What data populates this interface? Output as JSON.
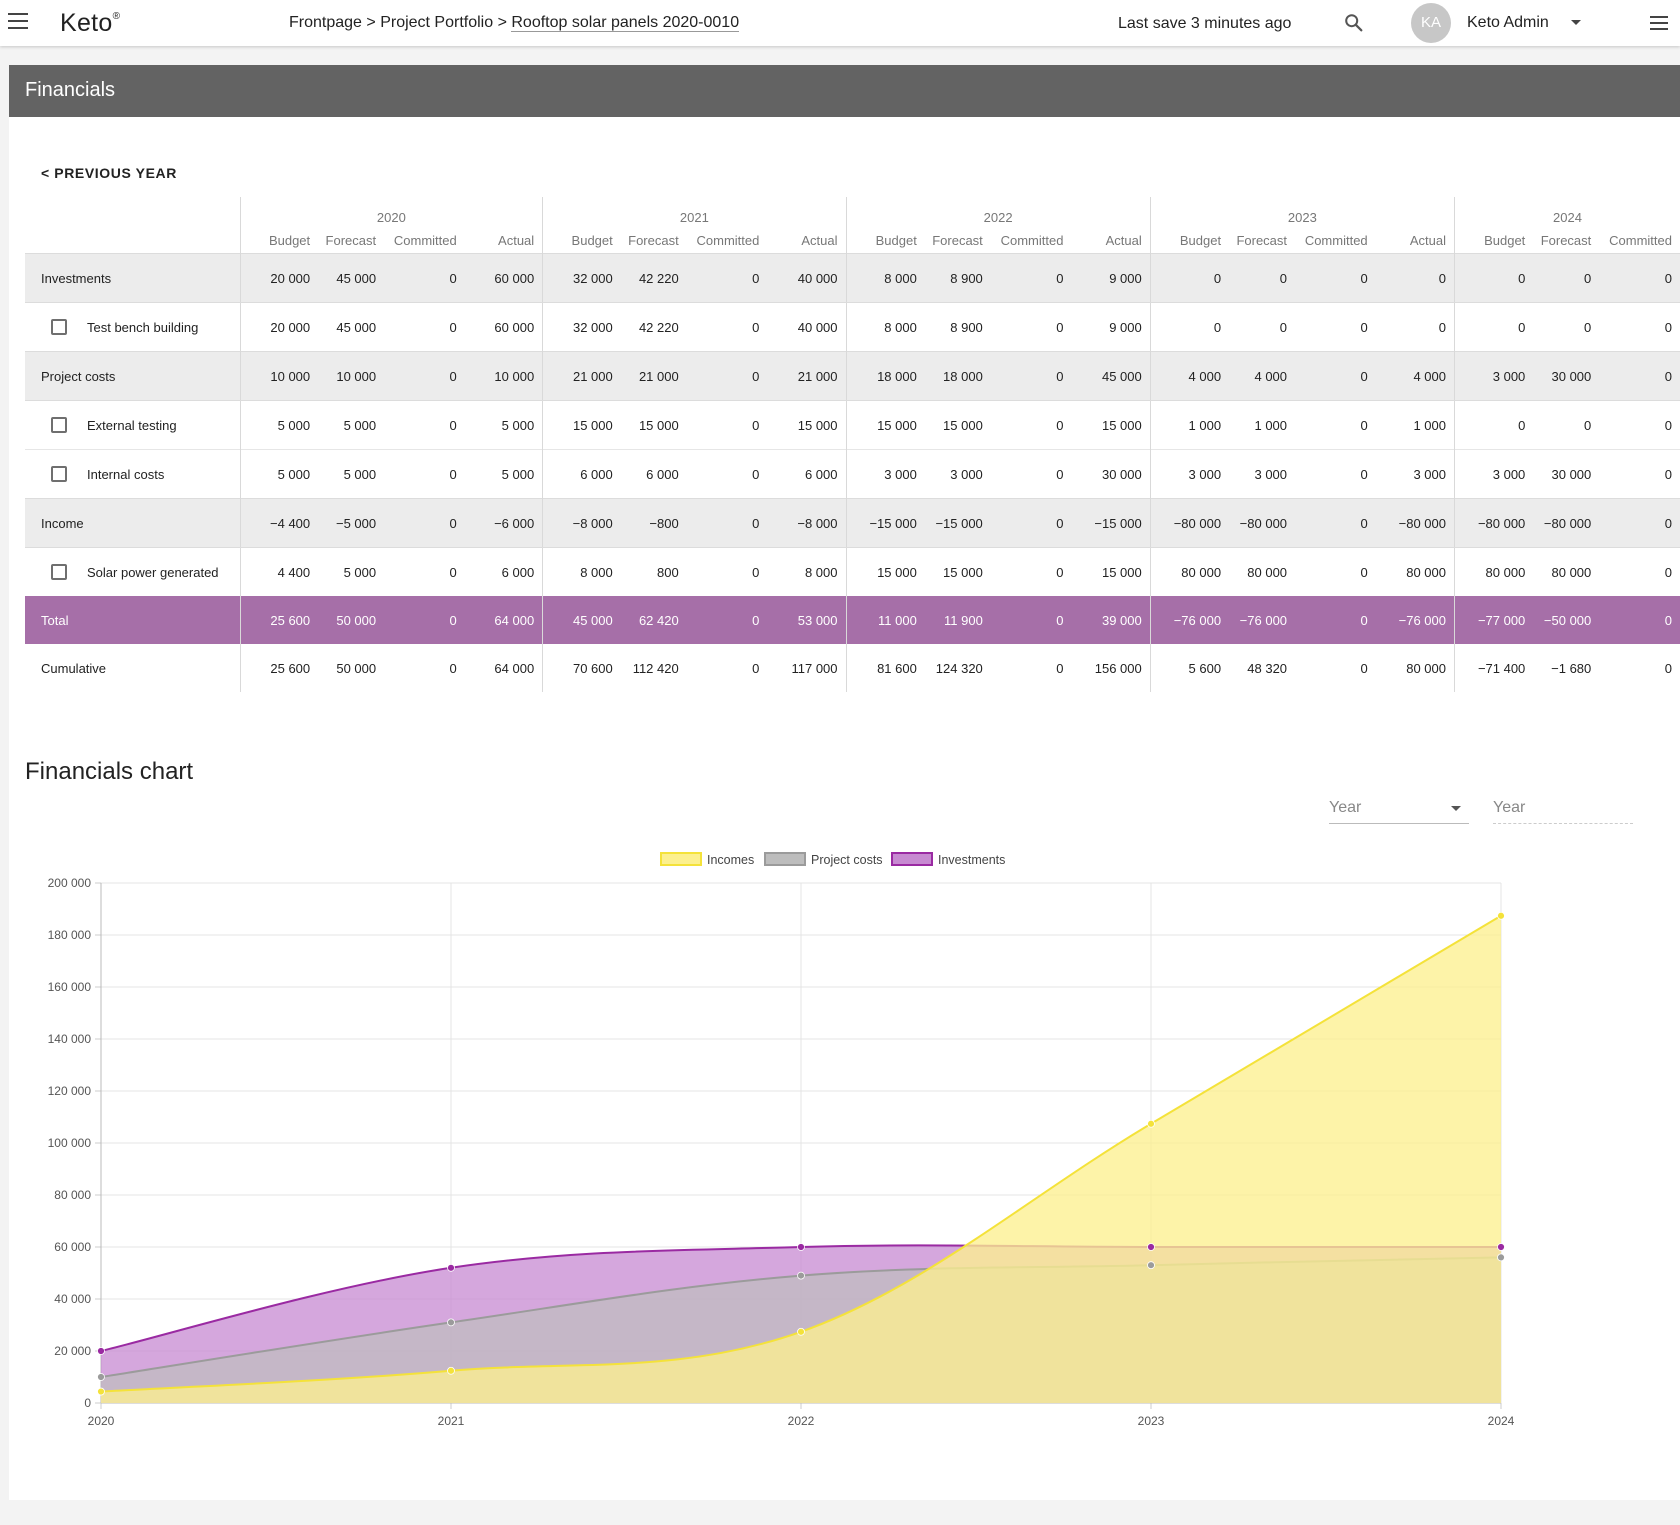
{
  "app": {
    "logo": "Keto",
    "logo_mark": "®",
    "breadcrumb": {
      "items": [
        "Frontpage",
        "Project Portfolio"
      ],
      "sep": ">",
      "current": "Rooftop solar panels 2020-0010"
    },
    "last_save": "Last save 3 minutes ago",
    "user": {
      "initials": "KA",
      "name": "Keto Admin"
    },
    "icons": {
      "menu_left": "hamburger-icon",
      "search": "search-icon",
      "menu_right": "hamburger-icon",
      "user_caret": "caret-down-icon"
    }
  },
  "panel": {
    "title": "Financials",
    "prev_year": "< PREVIOUS YEAR"
  },
  "table": {
    "years": [
      "2020",
      "2021",
      "2022",
      "2023",
      "2024"
    ],
    "columns": [
      "Budget",
      "Forecast",
      "Committed",
      "Actual"
    ],
    "rows": [
      {
        "label": "Investments",
        "type": "group",
        "values": [
          "20 000",
          "45 000",
          "0",
          "60 000",
          "32 000",
          "42 220",
          "0",
          "40 000",
          "8 000",
          "8 900",
          "0",
          "9 000",
          "0",
          "0",
          "0",
          "0",
          "0",
          "0",
          "0"
        ]
      },
      {
        "label": "Test bench building",
        "type": "child",
        "values": [
          "20 000",
          "45 000",
          "0",
          "60 000",
          "32 000",
          "42 220",
          "0",
          "40 000",
          "8 000",
          "8 900",
          "0",
          "9 000",
          "0",
          "0",
          "0",
          "0",
          "0",
          "0",
          "0"
        ]
      },
      {
        "label": "Project costs",
        "type": "group",
        "values": [
          "10 000",
          "10 000",
          "0",
          "10 000",
          "21 000",
          "21 000",
          "0",
          "21 000",
          "18 000",
          "18 000",
          "0",
          "45 000",
          "4 000",
          "4 000",
          "0",
          "4 000",
          "3 000",
          "30 000",
          "0"
        ]
      },
      {
        "label": "External testing",
        "type": "child",
        "values": [
          "5 000",
          "5 000",
          "0",
          "5 000",
          "15 000",
          "15 000",
          "0",
          "15 000",
          "15 000",
          "15 000",
          "0",
          "15 000",
          "1 000",
          "1 000",
          "0",
          "1 000",
          "0",
          "0",
          "0"
        ]
      },
      {
        "label": "Internal costs",
        "type": "child",
        "values": [
          "5 000",
          "5 000",
          "0",
          "5 000",
          "6 000",
          "6 000",
          "0",
          "6 000",
          "3 000",
          "3 000",
          "0",
          "30 000",
          "3 000",
          "3 000",
          "0",
          "3 000",
          "3 000",
          "30 000",
          "0"
        ]
      },
      {
        "label": "Income",
        "type": "group",
        "values": [
          "−4 400",
          "−5 000",
          "0",
          "−6 000",
          "−8 000",
          "−800",
          "0",
          "−8 000",
          "−15 000",
          "−15 000",
          "0",
          "−15 000",
          "−80 000",
          "−80 000",
          "0",
          "−80 000",
          "−80 000",
          "−80 000",
          "0"
        ]
      },
      {
        "label": "Solar power generated",
        "type": "child",
        "values": [
          "4 400",
          "5 000",
          "0",
          "6 000",
          "8 000",
          "800",
          "0",
          "8 000",
          "15 000",
          "15 000",
          "0",
          "15 000",
          "80 000",
          "80 000",
          "0",
          "80 000",
          "80 000",
          "80 000",
          "0"
        ]
      },
      {
        "label": "Total",
        "type": "total",
        "values": [
          "25 600",
          "50 000",
          "0",
          "64 000",
          "45 000",
          "62 420",
          "0",
          "53 000",
          "11 000",
          "11 900",
          "0",
          "39 000",
          "−76 000",
          "−76 000",
          "0",
          "−76 000",
          "−77 000",
          "−50 000",
          "0"
        ]
      },
      {
        "label": "Cumulative",
        "type": "cum",
        "values": [
          "25 600",
          "50 000",
          "0",
          "64 000",
          "70 600",
          "112 420",
          "0",
          "117 000",
          "81 600",
          "124 320",
          "0",
          "156 000",
          "5 600",
          "48 320",
          "0",
          "80 000",
          "−71 400",
          "−1 680",
          "0"
        ]
      }
    ]
  },
  "chart_section": {
    "title": "Financials chart",
    "select_label": "Year",
    "input_placeholder": "Year"
  },
  "chart_data": {
    "type": "area",
    "x": [
      "2020",
      "2021",
      "2022",
      "2023",
      "2024"
    ],
    "ylim": [
      0,
      200000
    ],
    "yticks": [
      "0",
      "20 000",
      "40 000",
      "60 000",
      "80 000",
      "100 000",
      "120 000",
      "140 000",
      "160 000",
      "180 000",
      "200 000"
    ],
    "legend_position": "top",
    "series": [
      {
        "name": "Incomes",
        "values": [
          4400,
          12400,
          27400,
          107400,
          187400
        ],
        "color": "#f4e23a",
        "fill": "#fcf08f"
      },
      {
        "name": "Project costs",
        "values": [
          10000,
          31000,
          49000,
          53000,
          56000
        ],
        "color": "#9b9b9b",
        "fill": "#bdbdbd"
      },
      {
        "name": "Investments",
        "values": [
          20000,
          52000,
          60000,
          60000,
          60000
        ],
        "color": "#9a2aa2",
        "fill": "#c78ad1"
      }
    ]
  }
}
